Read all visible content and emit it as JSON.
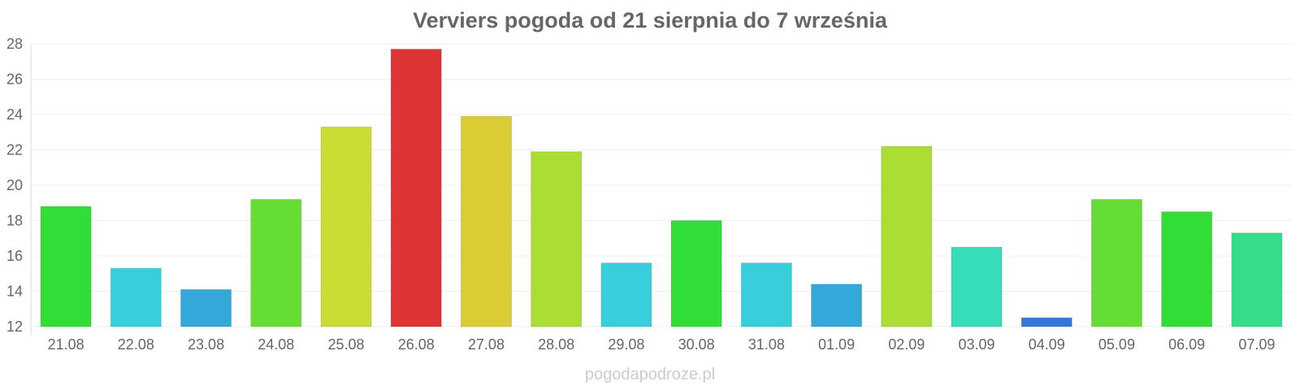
{
  "chart_data": {
    "type": "bar",
    "title": "Verviers pogoda od 21 sierpnia do 7 września",
    "xlabel": "",
    "ylabel": "",
    "categories": [
      "21.08",
      "22.08",
      "23.08",
      "24.08",
      "25.08",
      "26.08",
      "27.08",
      "28.08",
      "29.08",
      "30.08",
      "31.08",
      "01.09",
      "02.09",
      "03.09",
      "04.09",
      "05.09",
      "06.09",
      "07.09"
    ],
    "values": [
      18.8,
      15.3,
      14.1,
      19.2,
      23.3,
      27.7,
      23.9,
      21.9,
      15.6,
      18.0,
      15.6,
      14.4,
      22.2,
      16.5,
      12.5,
      19.2,
      18.5,
      17.3
    ],
    "colors": [
      "#32dd38",
      "#36cfdb",
      "#35a8db",
      "#66dd35",
      "#cbdd35",
      "#dd3535",
      "#dbcc35",
      "#acdd35",
      "#36cfdb",
      "#32dd38",
      "#36cfdb",
      "#35a8db",
      "#acdd35",
      "#35ddb9",
      "#3576dd",
      "#66dd35",
      "#32dd38",
      "#35dd8b"
    ],
    "ylim": [
      12,
      28
    ],
    "yticks": [
      12,
      14,
      16,
      18,
      20,
      22,
      24,
      26,
      28
    ],
    "grid": true,
    "legend": "none"
  },
  "watermark": "pogodapodroze.pl"
}
